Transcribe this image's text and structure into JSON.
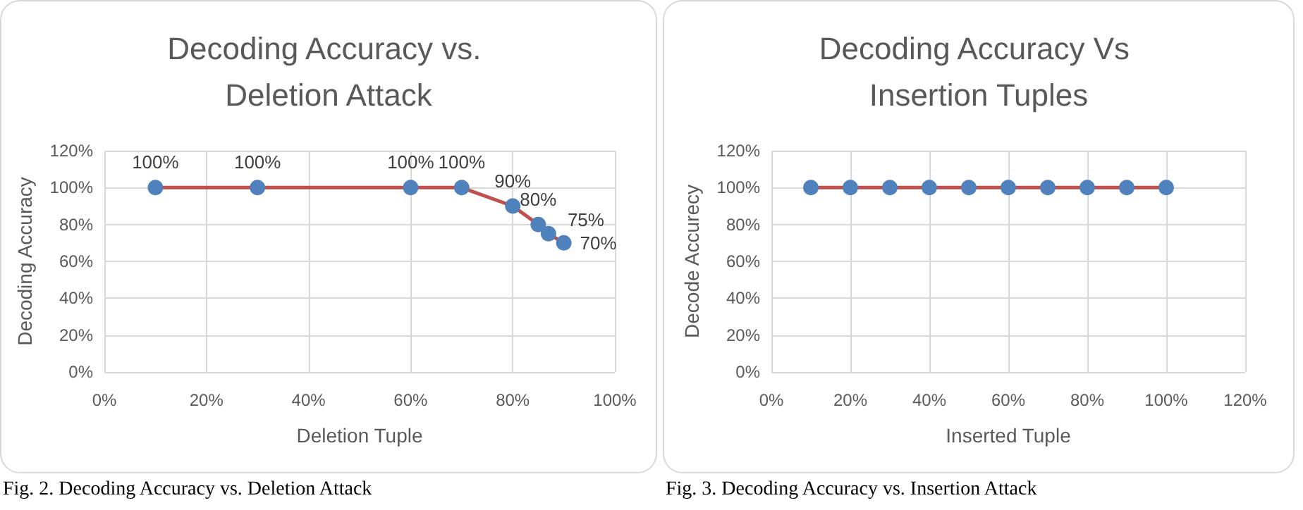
{
  "chart_data": [
    {
      "type": "line",
      "title": "Decoding Accuracy vs. Deletion Attack",
      "xlabel": "Deletion Tuple",
      "ylabel": "Decoding Accuracy",
      "x": [
        10,
        30,
        60,
        70,
        80,
        85,
        87,
        90
      ],
      "series": [
        {
          "color": "#c0504d",
          "values": [
            100,
            100,
            100,
            100,
            90,
            80,
            75,
            70
          ],
          "value_labels": [
            "100%",
            "100%",
            "100%",
            "100%",
            "90%",
            "80%",
            "75%",
            "70%"
          ]
        }
      ],
      "xlim": [
        0,
        100
      ],
      "xticks": [
        {
          "value": 0,
          "label": "0%"
        },
        {
          "value": 20,
          "label": "20%"
        },
        {
          "value": 40,
          "label": "40%"
        },
        {
          "value": 60,
          "label": "60%"
        },
        {
          "value": 80,
          "label": "80%"
        },
        {
          "value": 100,
          "label": "100%"
        }
      ],
      "ylim": [
        0,
        120
      ],
      "yticks": [
        {
          "value": 0,
          "label": "0%"
        },
        {
          "value": 20,
          "label": "20%"
        },
        {
          "value": 40,
          "label": "40%"
        },
        {
          "value": 60,
          "label": "60%"
        },
        {
          "value": 80,
          "label": "80%"
        },
        {
          "value": 100,
          "label": "100%"
        },
        {
          "value": 120,
          "label": "120%"
        }
      ],
      "grid": true,
      "marker": "circle",
      "line_style": "solid",
      "annotations": [
        "Fig. 2. Decoding Accuracy vs. Deletion Attack"
      ]
    },
    {
      "type": "line",
      "title": "Decoding Accuracy Vs Insertion Tuples",
      "xlabel": "Inserted Tuple",
      "ylabel": "Decode Accurecy",
      "x": [
        10,
        20,
        30,
        40,
        50,
        60,
        70,
        80,
        90,
        100
      ],
      "series": [
        {
          "color": "#c0504d",
          "values": [
            100,
            100,
            100,
            100,
            100,
            100,
            100,
            100,
            100,
            100
          ]
        }
      ],
      "xlim": [
        0,
        120
      ],
      "xticks": [
        {
          "value": 0,
          "label": "0%"
        },
        {
          "value": 20,
          "label": "20%"
        },
        {
          "value": 40,
          "label": "40%"
        },
        {
          "value": 60,
          "label": "60%"
        },
        {
          "value": 80,
          "label": "80%"
        },
        {
          "value": 100,
          "label": "100%"
        },
        {
          "value": 120,
          "label": "120%"
        }
      ],
      "ylim": [
        0,
        120
      ],
      "yticks": [
        {
          "value": 0,
          "label": "0%"
        },
        {
          "value": 20,
          "label": "20%"
        },
        {
          "value": 40,
          "label": "40%"
        },
        {
          "value": 60,
          "label": "60%"
        },
        {
          "value": 80,
          "label": "80%"
        },
        {
          "value": 100,
          "label": "100%"
        },
        {
          "value": 120,
          "label": "120%"
        }
      ],
      "grid": true,
      "marker": "circle",
      "line_style": "solid",
      "annotations": [
        "Fig. 3. Decoding Accuracy vs. Insertion Attack"
      ]
    }
  ]
}
